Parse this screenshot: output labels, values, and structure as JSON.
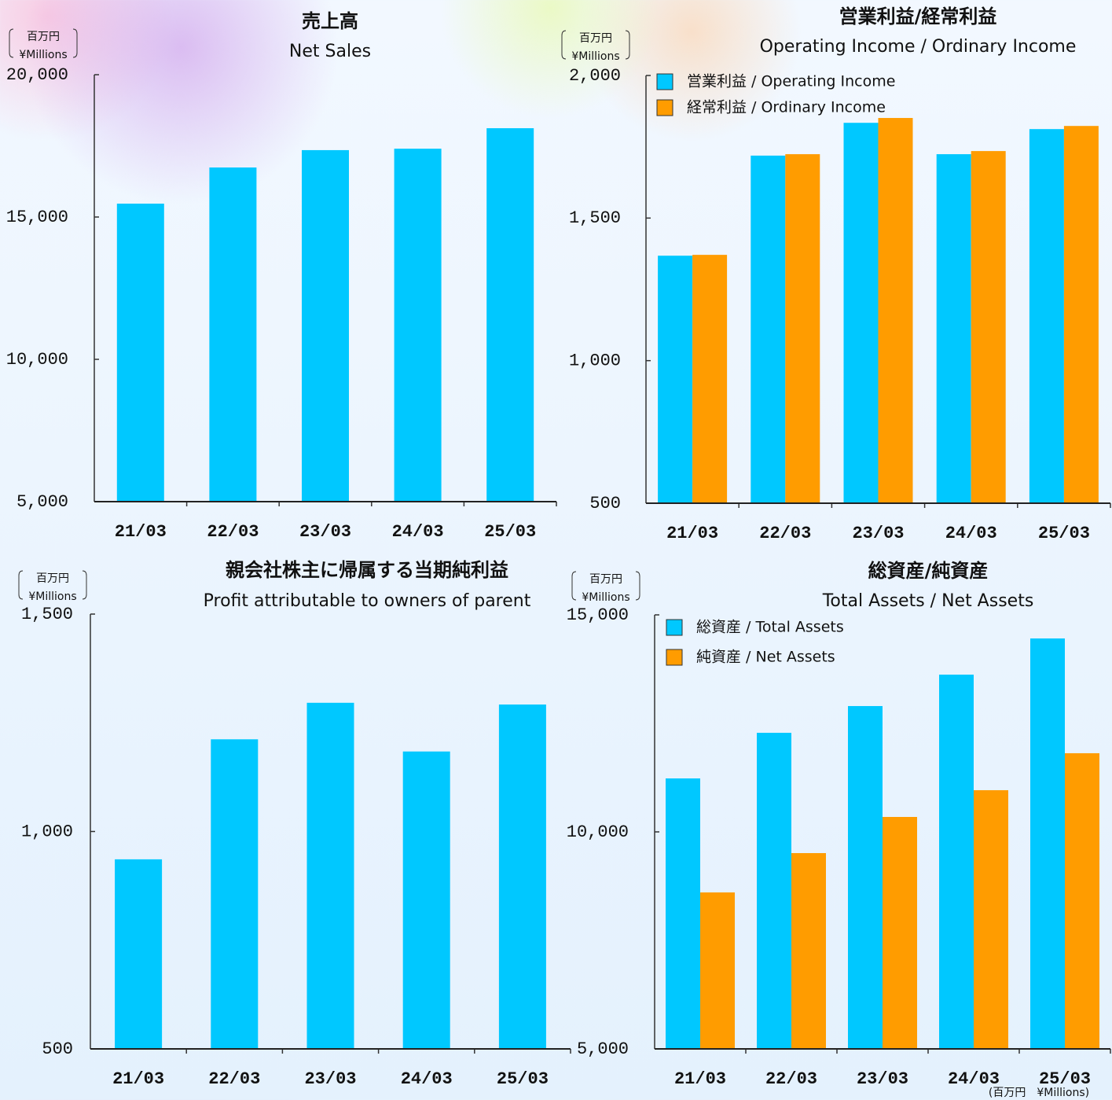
{
  "chart_data": [
    {
      "type": "bar",
      "title": "売上高",
      "subtitle": "Net Sales",
      "y_unit_ja": "百万円",
      "y_unit_en": "¥Millions",
      "categories": [
        "21/03",
        "22/03",
        "23/03",
        "24/03",
        "25/03"
      ],
      "values": [
        15470,
        16740,
        17350,
        17400,
        18120
      ],
      "color": "#00c8ff",
      "ylim": [
        5000,
        20000
      ],
      "yticks": [
        {
          "value": 5000,
          "label": "5,000"
        },
        {
          "value": 10000,
          "label": "10,000"
        },
        {
          "value": 15000,
          "label": "15,000"
        },
        {
          "value": 20000,
          "label": "20,000"
        }
      ]
    },
    {
      "type": "grouped-bar",
      "title": "営業利益/経常利益",
      "subtitle": "Operating Income / Ordinary Income",
      "y_unit_ja": "百万円",
      "y_unit_en": "¥Millions",
      "categories": [
        "21/03",
        "22/03",
        "23/03",
        "24/03",
        "25/03"
      ],
      "series": [
        {
          "name": "営業利益 / Operating Income",
          "color": "#00c8ff",
          "values": [
            1368,
            1719,
            1834,
            1724,
            1812
          ]
        },
        {
          "name": "経常利益 / Ordinary Income",
          "color": "#ff9c00",
          "values": [
            1371,
            1724,
            1851,
            1735,
            1823
          ]
        }
      ],
      "legend": "top-left",
      "ylim": [
        500,
        2000
      ],
      "yticks": [
        500,
        {
          "value": 1000,
          "label": "1,000"
        },
        {
          "value": 1500,
          "label": "1,500"
        },
        {
          "value": 2000,
          "label": "2,000"
        }
      ]
    },
    {
      "type": "bar",
      "title": "親会社株主に帰属する当期純利益",
      "subtitle": "Profit attributable to owners of parent",
      "y_unit_ja": "百万円",
      "y_unit_en": "¥Millions",
      "categories": [
        "21/03",
        "22/03",
        "23/03",
        "24/03",
        "25/03"
      ],
      "values": [
        936,
        1212,
        1296,
        1184,
        1292
      ],
      "color": "#00c8ff",
      "ylim": [
        500,
        1500
      ],
      "yticks": [
        500,
        {
          "value": 1000,
          "label": "1,000"
        },
        {
          "value": 1500,
          "label": "1,500"
        }
      ]
    },
    {
      "type": "grouped-bar",
      "title": "総資産/純資産",
      "subtitle": "Total Assets / Net Assets",
      "y_unit_ja": "百万円",
      "y_unit_en": "¥Millions",
      "footnote": "(百万円　¥Millions)",
      "categories": [
        "21/03",
        "22/03",
        "23/03",
        "24/03",
        "25/03"
      ],
      "series": [
        {
          "name": "総資産 / Total Assets",
          "color": "#00c8ff",
          "values": [
            11232,
            12283,
            12899,
            13623,
            14457
          ]
        },
        {
          "name": "純資産 / Net Assets",
          "color": "#ff9c00",
          "values": [
            8605,
            9511,
            10344,
            10960,
            11812
          ]
        }
      ],
      "legend": "top-left",
      "ylim": [
        5000,
        15000
      ],
      "yticks": [
        {
          "value": 5000,
          "label": "5,000"
        },
        {
          "value": 10000,
          "label": "10,000"
        },
        {
          "value": 15000,
          "label": "15,000"
        }
      ]
    }
  ]
}
